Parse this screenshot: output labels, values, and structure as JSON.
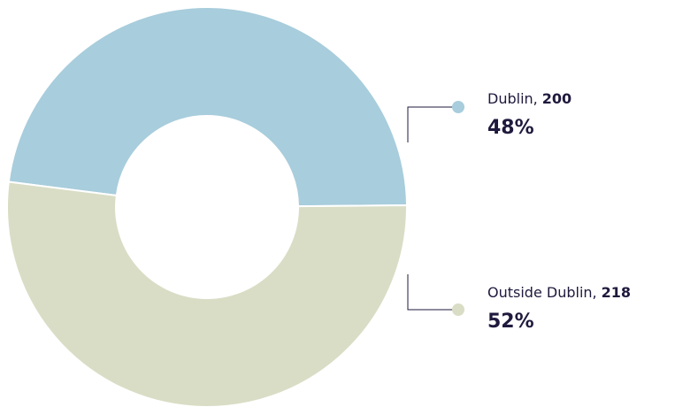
{
  "chart_data": {
    "type": "donut",
    "categories": [
      "Dublin",
      "Outside Dublin"
    ],
    "values": [
      200,
      218
    ],
    "percent_labels": [
      "48%",
      "52%"
    ],
    "separator": ",",
    "colors": [
      "#a8cddc",
      "#d9ddc5"
    ]
  }
}
